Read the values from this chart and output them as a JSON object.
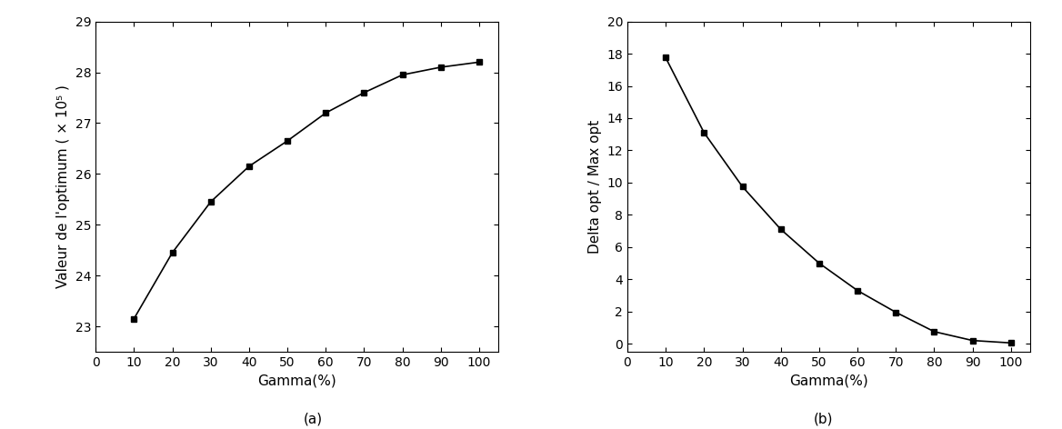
{
  "gamma": [
    10,
    20,
    30,
    40,
    50,
    60,
    70,
    80,
    90,
    100
  ],
  "chart_a": {
    "y_values": [
      23.15,
      24.45,
      25.45,
      26.15,
      26.65,
      27.2,
      27.6,
      27.95,
      28.1,
      28.2
    ],
    "ylabel": "Valeur de l'optimum ( × 10⁵ )",
    "xlabel": "Gamma(%)",
    "sublabel": "(a)",
    "ylim": [
      22.5,
      29
    ],
    "yticks": [
      23,
      24,
      25,
      26,
      27,
      28,
      29
    ],
    "xlim": [
      0,
      105
    ],
    "xticks": [
      0,
      10,
      20,
      30,
      40,
      50,
      60,
      70,
      80,
      90,
      100
    ]
  },
  "chart_b": {
    "y_values": [
      17.75,
      13.1,
      9.75,
      7.1,
      5.0,
      3.3,
      1.95,
      0.75,
      0.2,
      0.05
    ],
    "ylabel": "Delta opt / Max opt",
    "xlabel": "Gamma(%)",
    "sublabel": "(b)",
    "ylim": [
      -0.5,
      20
    ],
    "yticks": [
      0,
      2,
      4,
      6,
      8,
      10,
      12,
      14,
      16,
      18,
      20
    ],
    "xlim": [
      0,
      105
    ],
    "xticks": [
      0,
      10,
      20,
      30,
      40,
      50,
      60,
      70,
      80,
      90,
      100
    ]
  },
  "line_color": "#000000",
  "marker": "s",
  "marker_size": 5,
  "marker_facecolor": "#000000",
  "line_width": 1.2,
  "background_color": "#ffffff"
}
